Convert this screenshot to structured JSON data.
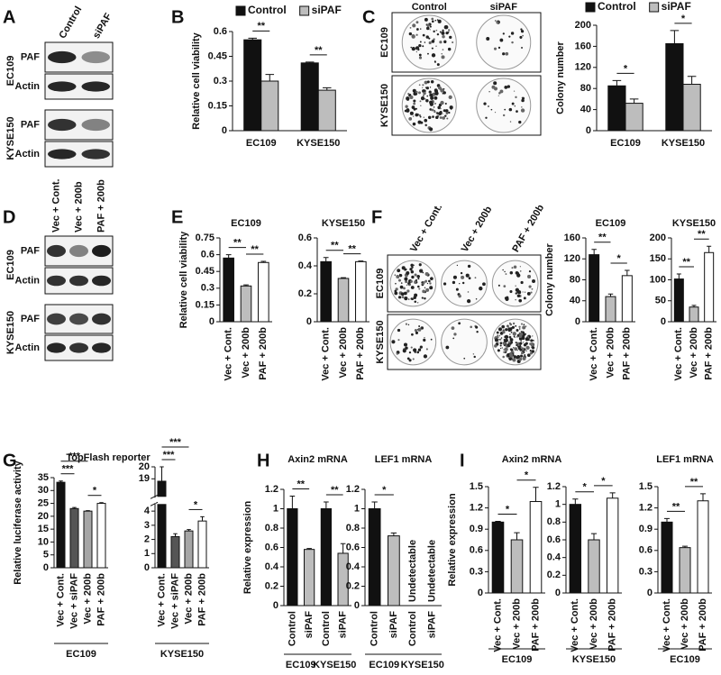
{
  "panels": [
    "A",
    "B",
    "C",
    "D",
    "E",
    "F",
    "G",
    "H",
    "I"
  ],
  "blots": [
    {
      "columns": [
        "Control",
        "siPAF"
      ],
      "rows": [
        {
          "cell": "EC109",
          "bands": [
            "PAF",
            "Actin"
          ]
        },
        {
          "cell": "KYSE150",
          "bands": [
            "PAF",
            "Actin"
          ]
        }
      ]
    },
    {
      "columns": [
        "Vec + Cont.",
        "Vec + 200b",
        "PAF + 200b"
      ],
      "rows": [
        {
          "cell": "EC109",
          "bands": [
            "PAF",
            "Actin"
          ]
        },
        {
          "cell": "KYSE150",
          "bands": [
            "PAF",
            "Actin"
          ]
        }
      ]
    }
  ],
  "plates": [
    {
      "columns": [
        "Control",
        "siPAF"
      ],
      "rows": [
        "EC109",
        "KYSE150"
      ]
    },
    {
      "columns": [
        "Vec + Cont.",
        "Vec + 200b",
        "PAF + 200b"
      ],
      "rows": [
        "EC109",
        "KYSE150"
      ]
    }
  ],
  "chart_data": [
    {
      "type": "bar",
      "ylabel": "Relative cell viability",
      "categories": [
        "EC109",
        "KYSE150"
      ],
      "series": [
        {
          "name": "Control",
          "color": "#111111",
          "values": [
            0.55,
            0.41
          ],
          "errors": [
            0.01,
            0.005
          ]
        },
        {
          "name": "siPAF",
          "color": "#bdbdbd",
          "values": [
            0.3,
            0.245
          ],
          "errors": [
            0.04,
            0.015
          ]
        }
      ],
      "ylim": [
        0,
        0.6
      ],
      "yticks": [
        0,
        0.15,
        0.3,
        0.45,
        0.6
      ],
      "significance": [
        {
          "from": 0,
          "to": 1,
          "label": "**"
        },
        {
          "from": 2,
          "to": 3,
          "label": "**"
        }
      ]
    },
    {
      "type": "bar",
      "ylabel": "Colony number",
      "categories": [
        "EC109",
        "KYSE150"
      ],
      "series": [
        {
          "name": "Control",
          "color": "#111111",
          "values": [
            85,
            165
          ],
          "errors": [
            10,
            25
          ]
        },
        {
          "name": "siPAF",
          "color": "#bdbdbd",
          "values": [
            52,
            88
          ],
          "errors": [
            8,
            15
          ]
        }
      ],
      "ylim": [
        0,
        200
      ],
      "yticks": [
        0,
        40,
        80,
        120,
        160,
        200
      ],
      "significance": [
        {
          "from": 0,
          "to": 1,
          "label": "*"
        },
        {
          "from": 2,
          "to": 3,
          "label": "*"
        }
      ]
    },
    {
      "type": "bar",
      "title": "EC109",
      "ylabel": "Relative cell viability",
      "categories": [
        "Vec + Cont.",
        "Vec + 200b",
        "PAF + 200b"
      ],
      "values": [
        0.57,
        0.32,
        0.53
      ],
      "errors": [
        0.03,
        0.01,
        0.01
      ],
      "colors": [
        "#111111",
        "#bdbdbd",
        "#ffffff"
      ],
      "ylim": [
        0,
        0.75
      ],
      "yticks": [
        0,
        0.15,
        0.3,
        0.45,
        0.6,
        0.75
      ],
      "significance": [
        {
          "from": 0,
          "to": 1,
          "label": "**"
        },
        {
          "from": 1,
          "to": 2,
          "label": "**"
        }
      ]
    },
    {
      "type": "bar",
      "title": "KYSE150",
      "categories": [
        "Vec + Cont.",
        "Vec + 200b",
        "PAF + 200b"
      ],
      "values": [
        0.43,
        0.31,
        0.43
      ],
      "errors": [
        0.03,
        0.005,
        0.005
      ],
      "colors": [
        "#111111",
        "#bdbdbd",
        "#ffffff"
      ],
      "ylim": [
        0,
        0.6
      ],
      "yticks": [
        0,
        0.2,
        0.4,
        0.6
      ],
      "significance": [
        {
          "from": 0,
          "to": 1,
          "label": "**"
        },
        {
          "from": 1,
          "to": 2,
          "label": "**"
        }
      ]
    },
    {
      "type": "bar",
      "title": "EC109",
      "ylabel": "Colony number",
      "categories": [
        "Vec + Cont.",
        "Vec + 200b",
        "PAF + 200b"
      ],
      "values": [
        128,
        48,
        88
      ],
      "errors": [
        10,
        5,
        10
      ],
      "colors": [
        "#111111",
        "#bdbdbd",
        "#ffffff"
      ],
      "ylim": [
        0,
        160
      ],
      "yticks": [
        0,
        40,
        80,
        120,
        160
      ],
      "significance": [
        {
          "from": 0,
          "to": 1,
          "label": "**"
        },
        {
          "from": 1,
          "to": 2,
          "label": "*"
        }
      ]
    },
    {
      "type": "bar",
      "title": "KYSE150",
      "categories": [
        "Vec + Cont.",
        "Vec + 200b",
        "PAF + 200b"
      ],
      "values": [
        102,
        35,
        165
      ],
      "errors": [
        12,
        4,
        15
      ],
      "colors": [
        "#111111",
        "#bdbdbd",
        "#ffffff"
      ],
      "ylim": [
        0,
        200
      ],
      "yticks": [
        0,
        50,
        100,
        150,
        200
      ],
      "significance": [
        {
          "from": 0,
          "to": 1,
          "label": "**"
        },
        {
          "from": 1,
          "to": 2,
          "label": "**"
        }
      ]
    },
    {
      "type": "bar",
      "title": "TopFlash reporter",
      "ylabel": "Relative luciferase activity",
      "categories": [
        "Vec + Cont.",
        "Vec + siPAF",
        "Vec + 200b",
        "PAF + 200b"
      ],
      "values": [
        33.2,
        23,
        22,
        25
      ],
      "errors": [
        0.5,
        0.4,
        0.2,
        0.3
      ],
      "colors": [
        "#111111",
        "#555555",
        "#a6a6a6",
        "#ffffff"
      ],
      "ylim": [
        0,
        35
      ],
      "yticks": [
        0,
        5,
        10,
        15,
        20,
        25,
        30,
        35
      ],
      "groups": [
        {
          "name": "EC109",
          "count": 4
        }
      ],
      "significance": [
        {
          "from": 0,
          "to": 1,
          "label": "***"
        },
        {
          "from": 0,
          "to": 2,
          "label": "***"
        },
        {
          "from": 2,
          "to": 3,
          "label": "*"
        }
      ]
    },
    {
      "type": "bar",
      "categories": [
        "Vec + Cont.",
        "Vec + siPAF",
        "Vec + 200b",
        "PAF + 200b"
      ],
      "values": [
        18.8,
        2.2,
        2.6,
        3.3
      ],
      "errors": [
        1.2,
        0.2,
        0.1,
        0.3
      ],
      "colors": [
        "#111111",
        "#555555",
        "#a6a6a6",
        "#ffffff"
      ],
      "ylim": [
        0,
        20
      ],
      "ybreak": [
        4.5,
        17.5
      ],
      "yticks": [
        0,
        1,
        2,
        3,
        4,
        19,
        20
      ],
      "groups": [
        {
          "name": "KYSE150",
          "count": 4
        }
      ],
      "significance": [
        {
          "from": 0,
          "to": 1,
          "label": "***"
        },
        {
          "from": 0,
          "to": 2,
          "label": "***"
        },
        {
          "from": 2,
          "to": 3,
          "label": "*"
        }
      ]
    },
    {
      "type": "bar",
      "title": "Axin2 mRNA",
      "ylabel": "Relative expression",
      "categories": [
        "Control",
        "siPAF",
        "Control",
        "siPAF"
      ],
      "values": [
        1,
        0.58,
        1,
        0.54
      ],
      "errors": [
        0.13,
        0.01,
        0.07,
        0.1
      ],
      "colors": [
        "#111111",
        "#bdbdbd",
        "#111111",
        "#bdbdbd"
      ],
      "ylim": [
        0,
        1.2
      ],
      "yticks": [
        0,
        0.2,
        0.4,
        0.6,
        0.8,
        1,
        1.2
      ],
      "groups": [
        {
          "name": "EC109",
          "count": 2
        },
        {
          "name": "KYSE150",
          "count": 2
        }
      ],
      "significance": [
        {
          "from": 0,
          "to": 1,
          "label": "**"
        },
        {
          "from": 2,
          "to": 3,
          "label": "**"
        }
      ]
    },
    {
      "type": "bar",
      "title": "LEF1 mRNA",
      "categories": [
        "Control",
        "siPAF",
        "Control",
        "siPAF"
      ],
      "values": [
        1,
        0.72,
        null,
        null
      ],
      "value_labels": [
        null,
        null,
        "Undetectable",
        "Undetectable"
      ],
      "errors": [
        0.07,
        0.03,
        null,
        null
      ],
      "colors": [
        "#111111",
        "#bdbdbd",
        "#111111",
        "#bdbdbd"
      ],
      "ylim": [
        0,
        1.2
      ],
      "yticks": [
        0,
        0.2,
        0.4,
        0.6,
        0.8,
        1,
        1.2
      ],
      "groups": [
        {
          "name": "EC109",
          "count": 2
        },
        {
          "name": "KYSE150",
          "count": 2
        }
      ],
      "significance": [
        {
          "from": 0,
          "to": 1,
          "label": "*"
        }
      ]
    },
    {
      "type": "bar",
      "title": "Axin2 mRNA",
      "ylabel": "Relative expression",
      "categories": [
        "Vec + Cont.",
        "Vec + 200b",
        "PAF + 200b"
      ],
      "values": [
        1,
        0.75,
        1.29
      ],
      "errors": [
        0.01,
        0.1,
        0.2
      ],
      "colors": [
        "#111111",
        "#bdbdbd",
        "#ffffff"
      ],
      "ylim": [
        0,
        1.5
      ],
      "yticks": [
        0,
        0.3,
        0.6,
        0.9,
        1.2,
        1.5
      ],
      "groups": [
        {
          "name": "EC109",
          "count": 3
        }
      ],
      "significance": [
        {
          "from": 0,
          "to": 1,
          "label": "*"
        },
        {
          "from": 1,
          "to": 2,
          "label": "*"
        }
      ]
    },
    {
      "type": "bar",
      "categories": [
        "Vec + Cont.",
        "Vec + 200b",
        "PAF + 200b"
      ],
      "values": [
        1,
        0.6,
        1.07
      ],
      "errors": [
        0.06,
        0.07,
        0.06
      ],
      "colors": [
        "#111111",
        "#bdbdbd",
        "#ffffff"
      ],
      "ylim": [
        0,
        1.2
      ],
      "yticks": [
        0,
        0.2,
        0.4,
        0.6,
        0.8,
        1,
        1.2
      ],
      "groups": [
        {
          "name": "KYSE150",
          "count": 3
        }
      ],
      "significance": [
        {
          "from": 0,
          "to": 1,
          "label": "*"
        },
        {
          "from": 1,
          "to": 2,
          "label": "*"
        }
      ]
    },
    {
      "type": "bar",
      "title": "LEF1 mRNA",
      "categories": [
        "Vec + Cont.",
        "Vec + 200b",
        "PAF + 200b"
      ],
      "values": [
        1,
        0.64,
        1.3
      ],
      "errors": [
        0.05,
        0.02,
        0.1
      ],
      "colors": [
        "#111111",
        "#bdbdbd",
        "#ffffff"
      ],
      "ylim": [
        0,
        1.5
      ],
      "yticks": [
        0,
        0.3,
        0.6,
        0.9,
        1.2,
        1.5
      ],
      "groups": [
        {
          "name": "EC109",
          "count": 3
        }
      ],
      "significance": [
        {
          "from": 0,
          "to": 1,
          "label": "**"
        },
        {
          "from": 1,
          "to": 2,
          "label": "**"
        }
      ]
    }
  ]
}
